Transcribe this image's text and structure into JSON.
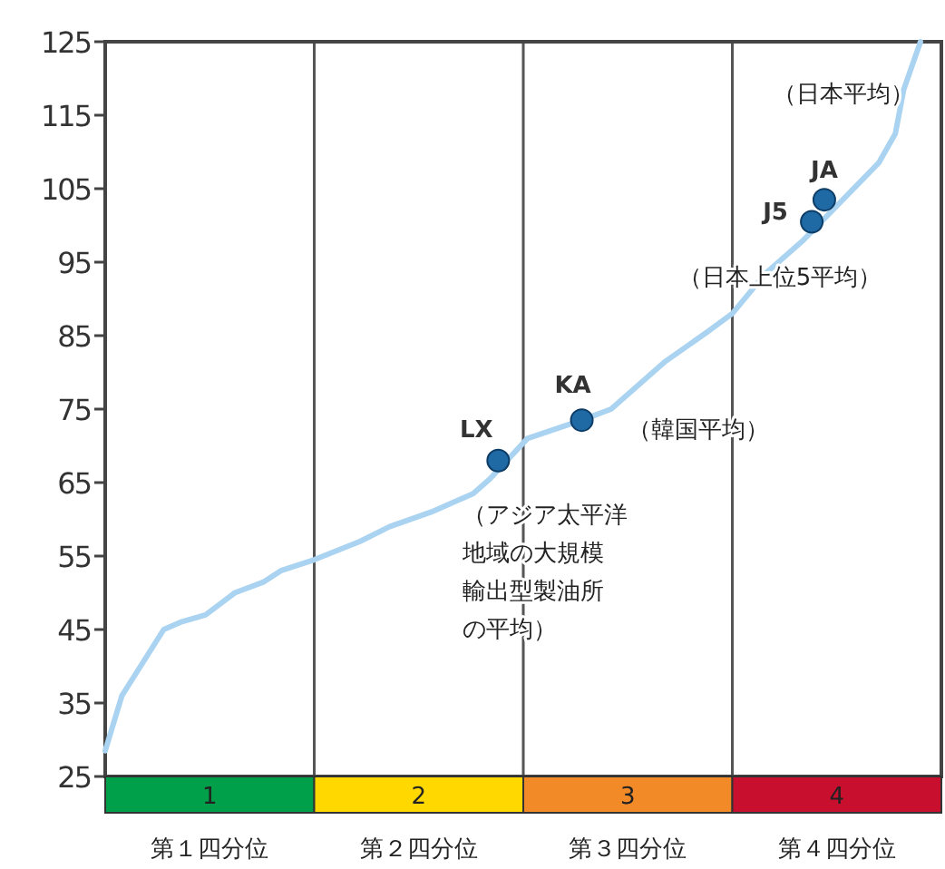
{
  "chart_data": {
    "type": "line",
    "series": [
      {
        "color": "#a9d3f0",
        "x": [
          0.5,
          0.58,
          0.78,
          0.86,
          0.98,
          1.12,
          1.26,
          1.34,
          1.5,
          1.72,
          1.86,
          2.06,
          2.26,
          2.34,
          2.52,
          2.78,
          2.92,
          3.18,
          3.38,
          3.5,
          3.66,
          3.84,
          4.2,
          4.28,
          4.32,
          4.4
        ],
        "values": [
          28.5,
          36,
          45,
          46,
          47,
          50,
          51.5,
          53,
          54.5,
          57,
          59,
          61,
          63.5,
          65.5,
          71,
          73.5,
          75,
          81.5,
          85.5,
          88,
          93.5,
          98,
          108.5,
          112.5,
          118.5,
          125
        ]
      },
      {
        "type": "scatter",
        "color": "#1f6aa5",
        "marker": "circle",
        "x": [
          2.38,
          2.78,
          3.88,
          3.94
        ],
        "values": [
          68,
          73.5,
          100.5,
          103.5
        ]
      }
    ],
    "xlim": [
      0.5,
      4.5
    ],
    "ylim": [
      25,
      125
    ],
    "xticks": [
      1,
      2,
      3,
      4
    ],
    "yticks": [
      25,
      35,
      45,
      55,
      65,
      75,
      85,
      95,
      105,
      115,
      125
    ],
    "ref_lines": [
      {
        "axis": "x",
        "value": 1.5,
        "color": "#555555"
      },
      {
        "axis": "x",
        "value": 2.5,
        "color": "#555555"
      },
      {
        "axis": "x",
        "value": 3.5,
        "color": "#555555"
      }
    ],
    "annotations": [
      {
        "text": "LX",
        "x": 2.38,
        "y": 68
      },
      {
        "text": "KA",
        "x": 2.78,
        "y": 73.5
      },
      {
        "text": "J5",
        "x": 3.88,
        "y": 100.5
      },
      {
        "text": "JA",
        "x": 3.94,
        "y": 103.5
      },
      "（日本平均）",
      "（日本上位5平均）",
      "（韓国平均）",
      "（アジア太平洋地域の大規模輸出型製油所の平均）",
      "第１四分位",
      "第２四分位",
      "第３四分位",
      "第４四分位"
    ],
    "grid": false
  }
}
